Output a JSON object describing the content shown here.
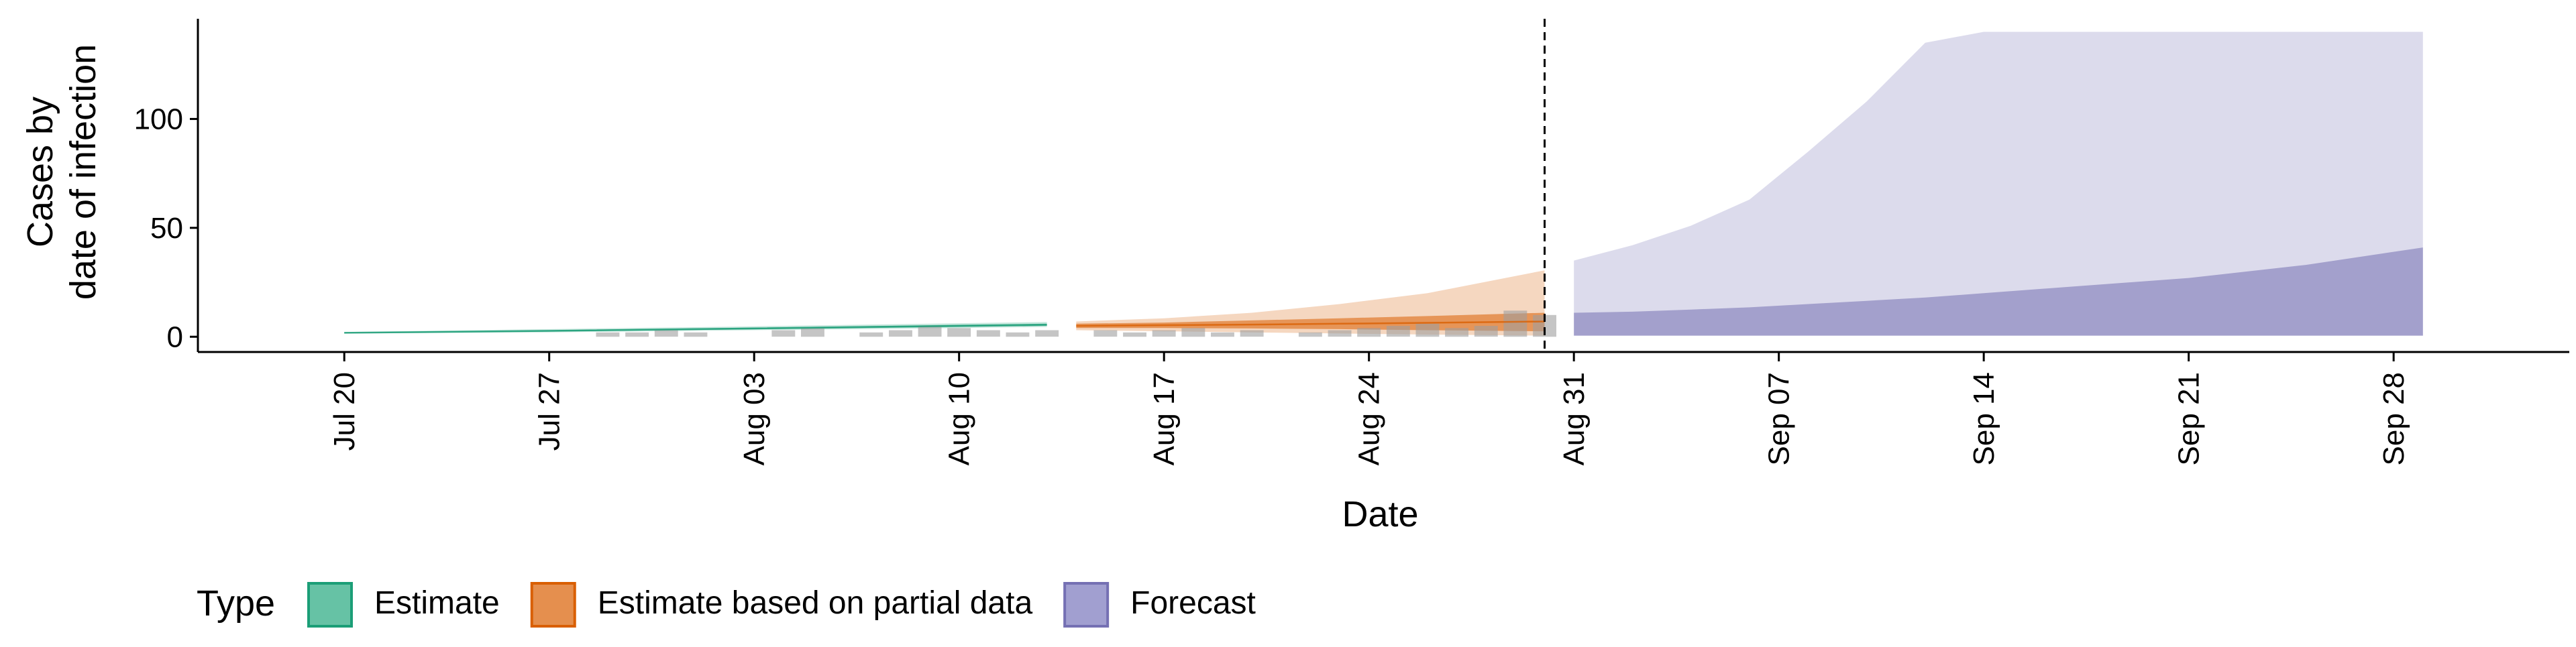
{
  "chart_data": {
    "type": "area",
    "title": "",
    "xlabel": "Date",
    "ylabel_lines": [
      "Cases by",
      "date of infection"
    ],
    "x_tick_labels": [
      "Jul 20",
      "Jul 27",
      "Aug 03",
      "Aug 10",
      "Aug 17",
      "Aug 24",
      "Aug 31",
      "Sep 07",
      "Sep 14",
      "Sep 21",
      "Sep 28"
    ],
    "x_tick_dates": [
      "2020-07-20",
      "2020-07-27",
      "2020-08-03",
      "2020-08-10",
      "2020-08-17",
      "2020-08-24",
      "2020-08-31",
      "2020-09-07",
      "2020-09-14",
      "2020-09-21",
      "2020-09-28"
    ],
    "xlim": [
      "2020-07-15",
      "2020-10-04"
    ],
    "y_ticks": [
      0,
      50,
      100
    ],
    "y_tick_labels": [
      "0",
      "50",
      "100"
    ],
    "ylim": [
      -7,
      146
    ],
    "legend": {
      "title": "Type",
      "position": "bottom-left",
      "entries": [
        {
          "label": "Estimate",
          "fill": "#66c2a5",
          "stroke": "#1b9e77"
        },
        {
          "label": "Estimate based on partial data",
          "fill": "#e58f4e",
          "stroke": "#d95f02"
        },
        {
          "label": "Forecast",
          "fill": "#a19fd0",
          "stroke": "#7570b3"
        }
      ]
    },
    "colors": {
      "estimate": "#1b9e77",
      "partial": "#d95f02",
      "forecast": "#7570b3",
      "observed_bars": "#9e9e9e",
      "axis": "#000000"
    },
    "vline_date": "2020-08-30",
    "series": [
      {
        "name": "Estimate",
        "color_key": "estimate",
        "x": [
          "2020-07-20",
          "2020-07-27",
          "2020-08-03",
          "2020-08-10",
          "2020-08-13"
        ],
        "outer_lower": [
          1.5,
          2.0,
          3.0,
          4.0,
          4.5
        ],
        "outer_upper": [
          2.2,
          3.5,
          4.8,
          6.2,
          6.8
        ],
        "inner_lower": [
          1.7,
          2.4,
          3.4,
          4.5,
          5.0
        ],
        "inner_upper": [
          2.0,
          3.0,
          4.2,
          5.5,
          6.0
        ],
        "median": [
          1.8,
          2.7,
          3.8,
          5.0,
          5.5
        ]
      },
      {
        "name": "Estimate based on partial data",
        "color_key": "partial",
        "x": [
          "2020-08-14",
          "2020-08-17",
          "2020-08-20",
          "2020-08-23",
          "2020-08-26",
          "2020-08-30"
        ],
        "outer_lower": [
          3.0,
          2.5,
          2.0,
          1.5,
          1.0,
          0.5
        ],
        "outer_upper": [
          7.0,
          8.5,
          11.0,
          15.0,
          20.0,
          30.5
        ],
        "inner_lower": [
          4.0,
          4.0,
          3.8,
          3.5,
          3.0,
          2.5
        ],
        "inner_upper": [
          6.0,
          6.5,
          7.5,
          8.5,
          9.5,
          11.0
        ],
        "median": [
          5.0,
          5.3,
          5.6,
          6.0,
          6.4,
          7.0
        ]
      },
      {
        "name": "Forecast",
        "color_key": "forecast",
        "x": [
          "2020-08-31",
          "2020-09-02",
          "2020-09-04",
          "2020-09-06",
          "2020-09-08",
          "2020-09-10",
          "2020-09-12",
          "2020-09-14",
          "2020-09-17",
          "2020-09-21",
          "2020-09-25",
          "2020-09-29"
        ],
        "outer_lower": [
          0.5,
          0.5,
          0.5,
          0.5,
          0.5,
          0.5,
          0.5,
          0.5,
          0.5,
          0.5,
          0.5,
          0.5
        ],
        "outer_upper": [
          35.0,
          42.0,
          51.0,
          63.0,
          85.0,
          108.0,
          135.0,
          140.0,
          140.0,
          140.0,
          140.0,
          140.0
        ],
        "inner_lower": [
          0.5,
          0.5,
          0.5,
          0.5,
          0.5,
          0.5,
          0.5,
          0.5,
          0.5,
          0.5,
          0.5,
          0.5
        ],
        "inner_upper": [
          11.0,
          11.5,
          12.5,
          13.5,
          15.0,
          16.5,
          18.0,
          20.0,
          23.0,
          27.0,
          33.0,
          41.0
        ],
        "median": []
      }
    ],
    "observed_bars": {
      "x": [
        "2020-07-29",
        "2020-07-30",
        "2020-07-31",
        "2020-08-01",
        "2020-08-04",
        "2020-08-05",
        "2020-08-07",
        "2020-08-08",
        "2020-08-09",
        "2020-08-10",
        "2020-08-11",
        "2020-08-12",
        "2020-08-13",
        "2020-08-15",
        "2020-08-16",
        "2020-08-17",
        "2020-08-18",
        "2020-08-19",
        "2020-08-20",
        "2020-08-22",
        "2020-08-23",
        "2020-08-24",
        "2020-08-25",
        "2020-08-26",
        "2020-08-27",
        "2020-08-28",
        "2020-08-29",
        "2020-08-30"
      ],
      "values": [
        2,
        2,
        3,
        2,
        3,
        4,
        2,
        3,
        5,
        4,
        3,
        2,
        3,
        3,
        2,
        3,
        4,
        2,
        3,
        2,
        3,
        4,
        5,
        6,
        4,
        5,
        12,
        10
      ]
    }
  }
}
